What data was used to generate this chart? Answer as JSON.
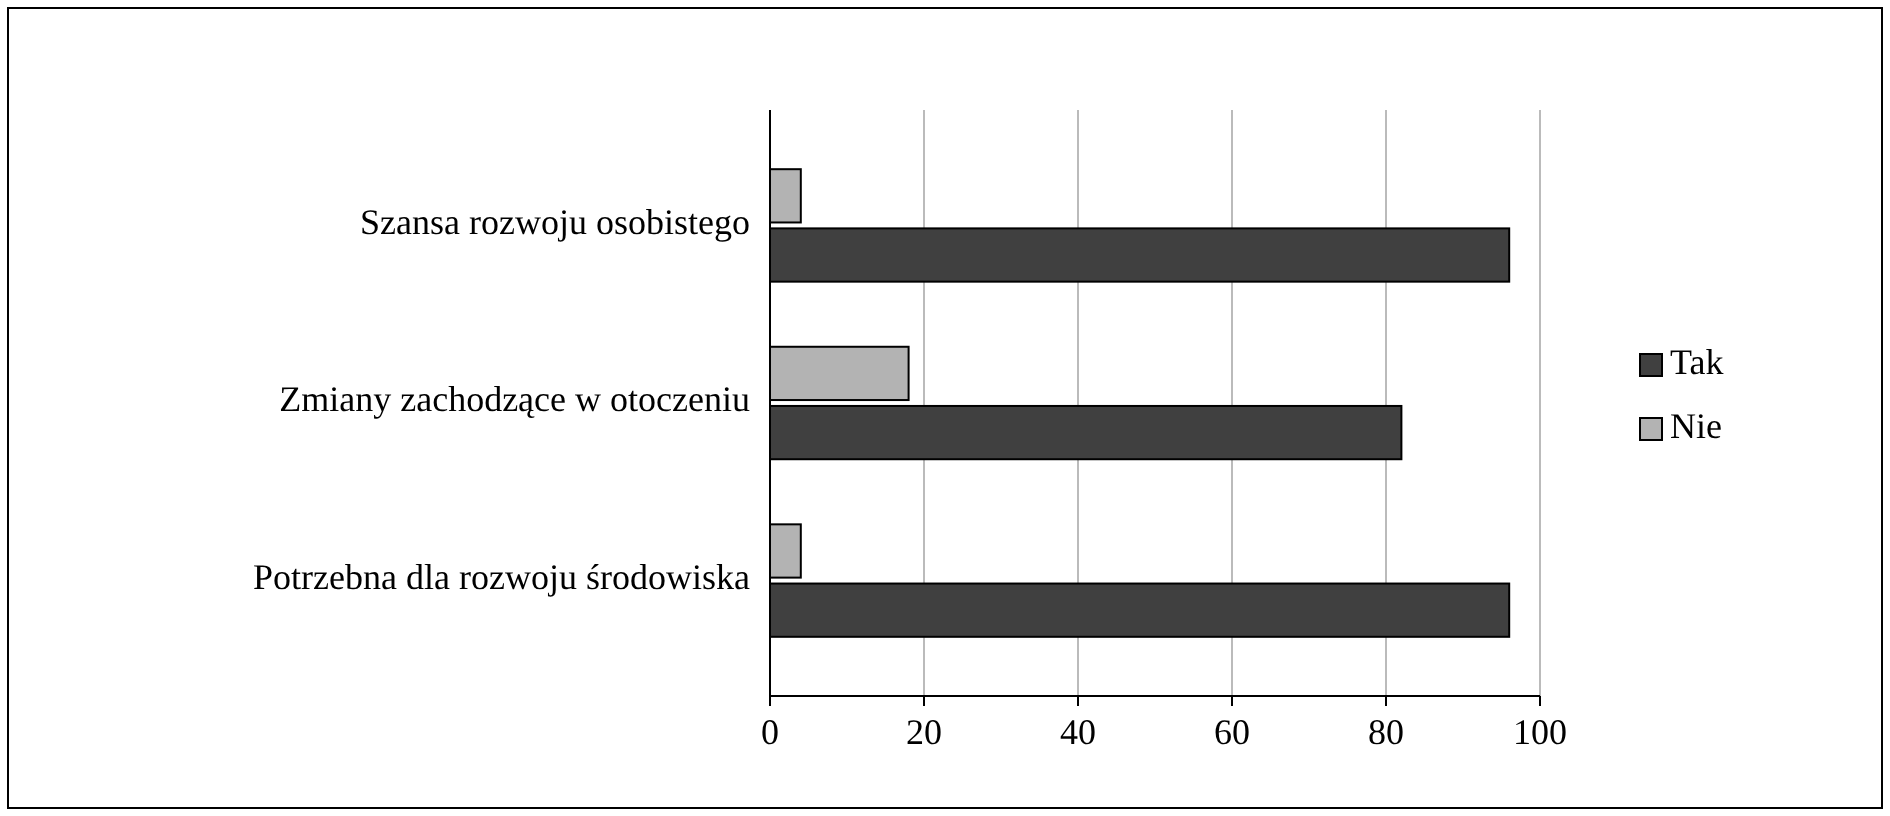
{
  "chart_data": {
    "type": "bar",
    "orientation": "horizontal",
    "categories": [
      "Szansa rozwoju osobistego",
      "Zmiany zachodzące w otoczeniu",
      "Potrzebna dla rozwoju środowiska"
    ],
    "series": [
      {
        "name": "Nie",
        "color": "#b3b3b3",
        "values": [
          4,
          18,
          4
        ]
      },
      {
        "name": "Tak",
        "color": "#404040",
        "values": [
          96,
          82,
          96
        ]
      }
    ],
    "xlim": [
      0,
      100
    ],
    "xticks": [
      0,
      20,
      40,
      60,
      80,
      100
    ],
    "grid": "x",
    "legend": "right"
  }
}
